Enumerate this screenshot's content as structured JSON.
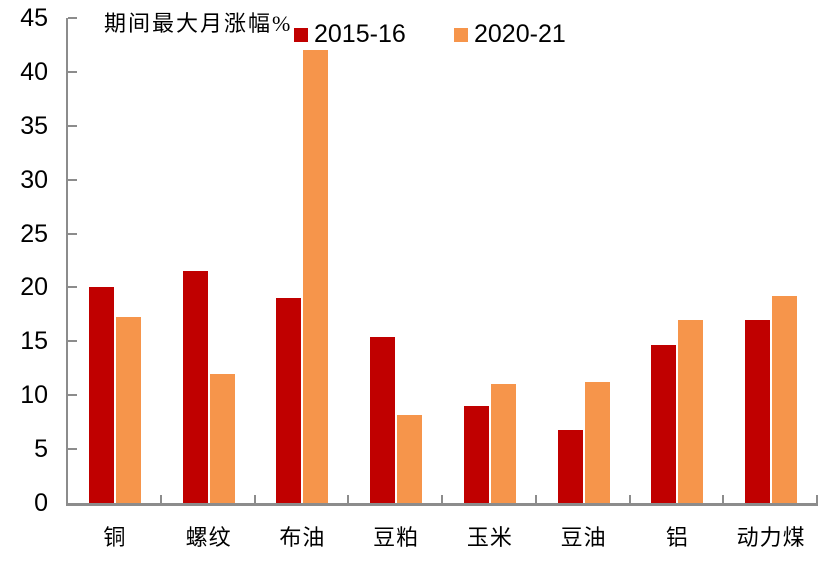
{
  "chart_data": {
    "type": "bar",
    "title": "期间最大月涨幅%",
    "categories": [
      "铜",
      "螺纹",
      "布油",
      "豆粕",
      "玉米",
      "豆油",
      "铝",
      "动力煤"
    ],
    "series": [
      {
        "name": "2015-16",
        "color": "#C00000",
        "values": [
          20.0,
          21.5,
          19.0,
          15.4,
          9.0,
          6.8,
          14.7,
          17.0
        ]
      },
      {
        "name": "2020-21",
        "color": "#F6954B",
        "values": [
          17.3,
          12.0,
          42.0,
          8.2,
          11.0,
          11.2,
          17.0,
          19.2
        ]
      }
    ],
    "ylim": [
      0,
      45
    ],
    "yticks": [
      0,
      5,
      10,
      15,
      20,
      25,
      30,
      35,
      40,
      45
    ],
    "grid": false,
    "legend_position": "top",
    "axis_color": "#8C8C8C",
    "text_color": "#000000",
    "background": "#FFFFFF"
  }
}
